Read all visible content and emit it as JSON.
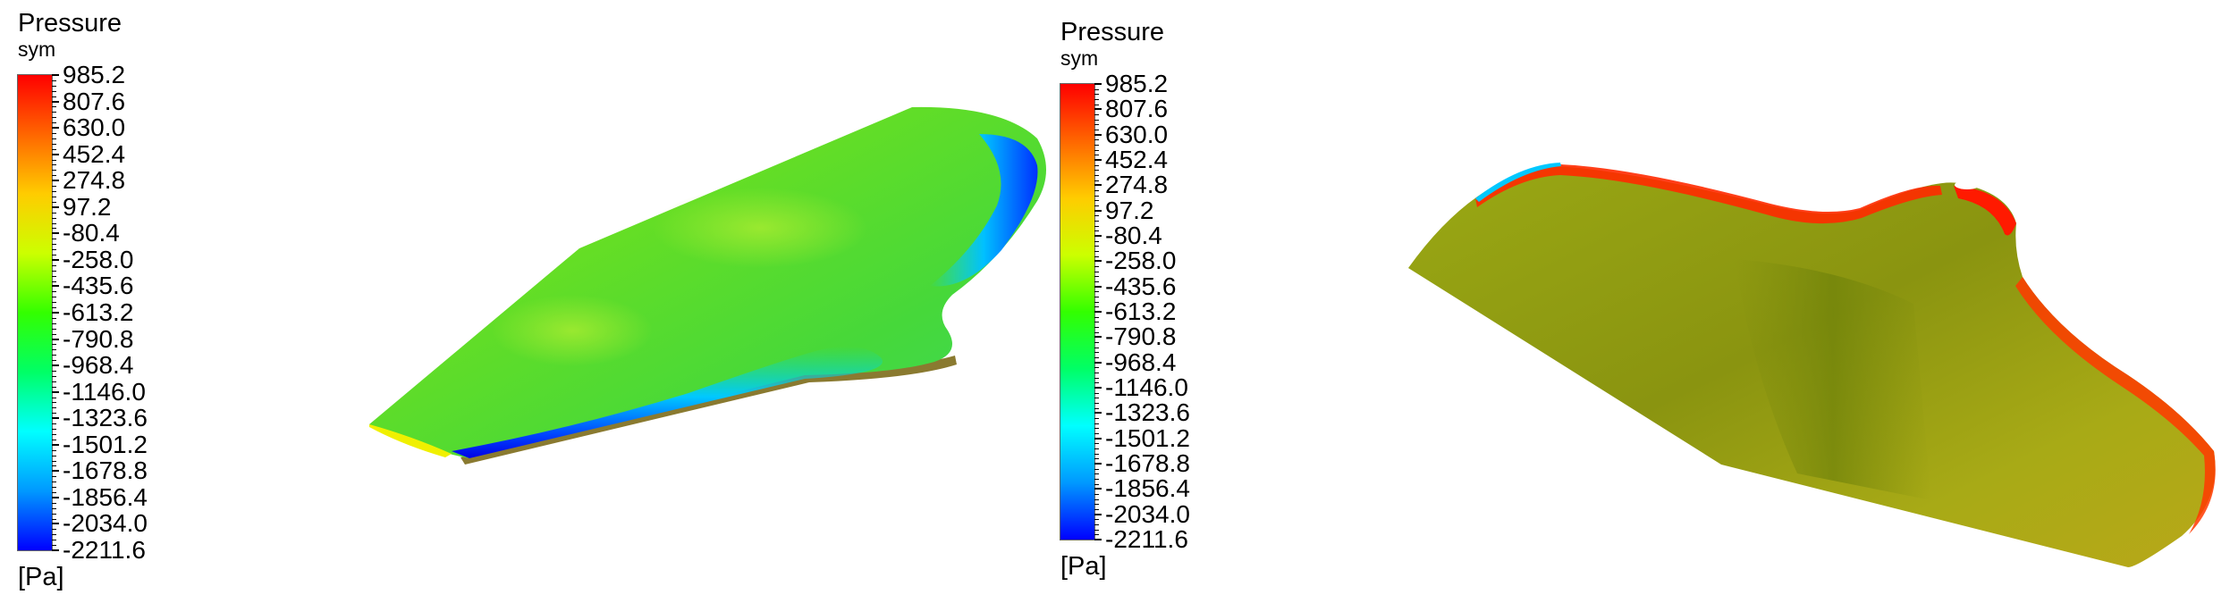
{
  "contours": [
    {
      "legend": {
        "title": "Pressure",
        "subtitle": "sym",
        "unit": "[Pa]",
        "levels": [
          "985.2",
          "807.6",
          "630.0",
          "452.4",
          "274.8",
          "97.2",
          "-80.4",
          "-258.0",
          "-435.6",
          "-613.2",
          "-790.8",
          "-968.4",
          "-1146.0",
          "-1323.6",
          "-1501.2",
          "-1678.8",
          "-1856.4",
          "-2034.0",
          "-2211.6"
        ],
        "colormap": [
          "#ff0000",
          "#ff6600",
          "#ffcc00",
          "#ccff00",
          "#33ff00",
          "#00ff66",
          "#00ffff",
          "#0099ff",
          "#0000ff"
        ]
      }
    },
    {
      "legend": {
        "title": "Pressure",
        "subtitle": "sym",
        "unit": "[Pa]",
        "levels": [
          "985.2",
          "807.6",
          "630.0",
          "452.4",
          "274.8",
          "97.2",
          "-80.4",
          "-258.0",
          "-435.6",
          "-613.2",
          "-790.8",
          "-968.4",
          "-1146.0",
          "-1323.6",
          "-1501.2",
          "-1678.8",
          "-1856.4",
          "-2034.0",
          "-2211.6"
        ],
        "colormap": [
          "#ff0000",
          "#ff6600",
          "#ffcc00",
          "#ccff00",
          "#33ff00",
          "#00ff66",
          "#00ffff",
          "#0099ff",
          "#0000ff"
        ]
      }
    }
  ],
  "colors": {
    "surface_left_base": "#6fe020",
    "surface_right_base": "#9a9a12",
    "edge_low": "#0000ff",
    "edge_high": "#ff1a00"
  }
}
